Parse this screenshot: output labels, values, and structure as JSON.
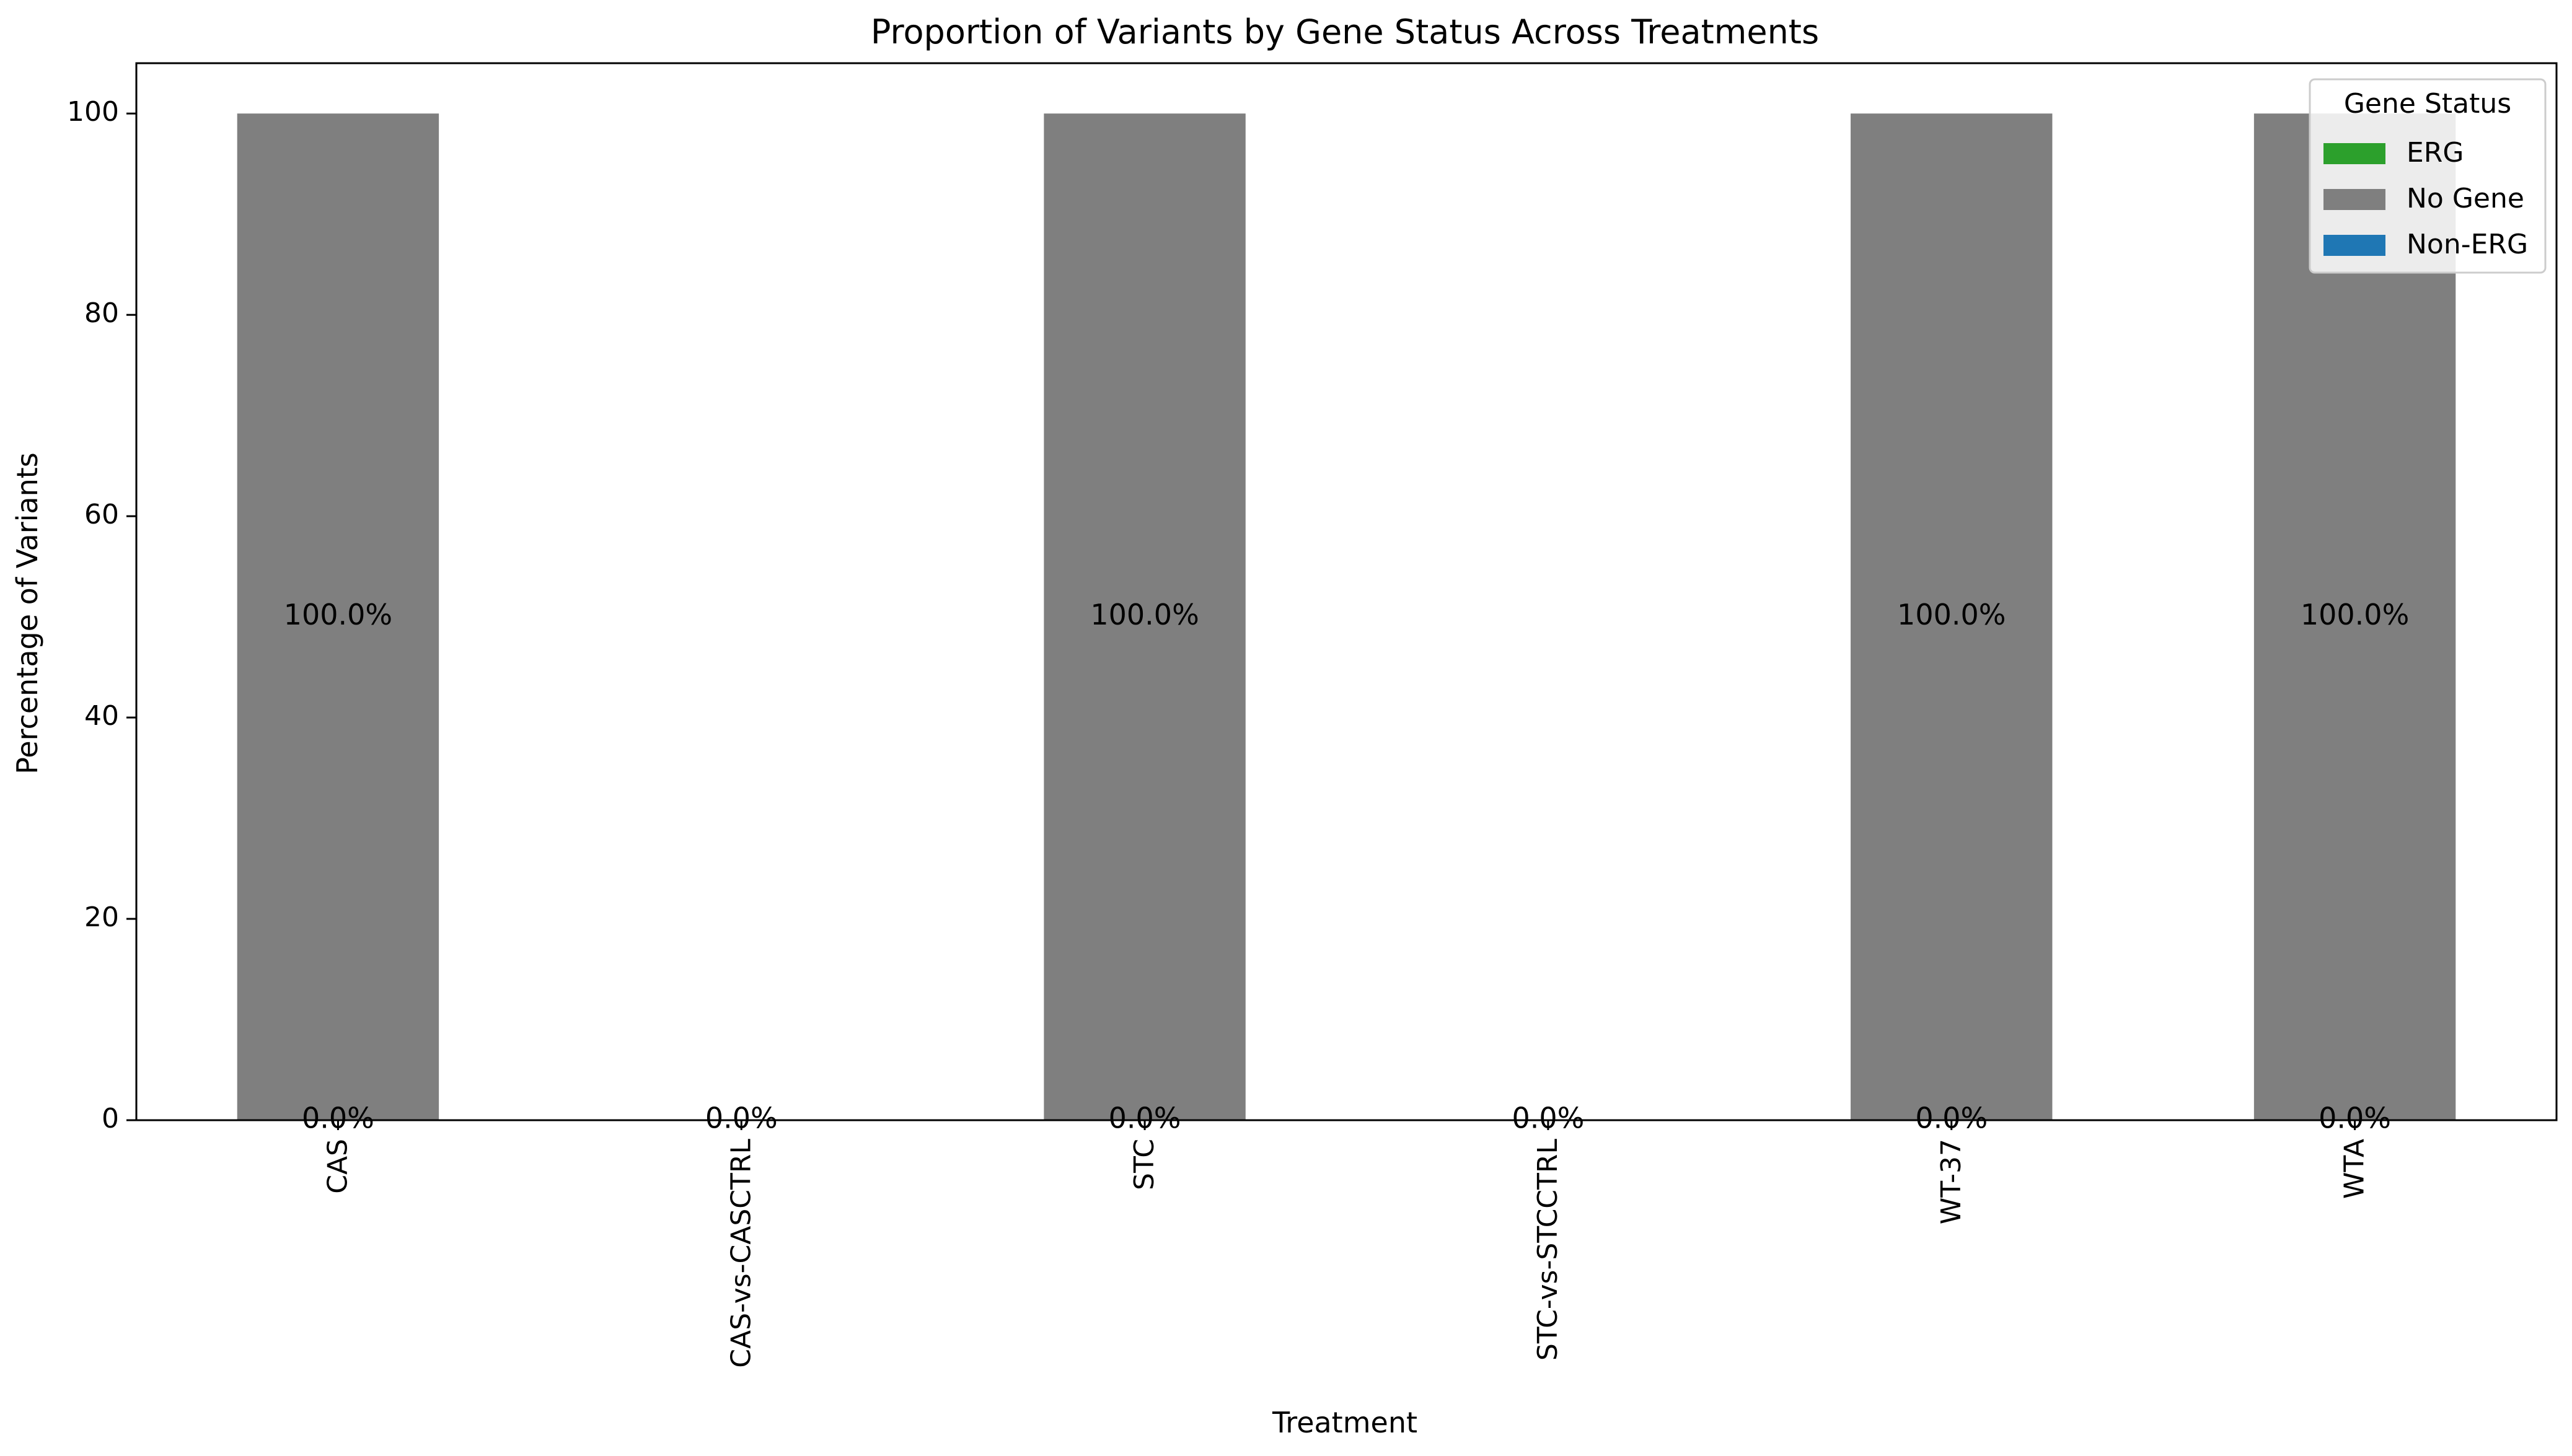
{
  "chart_data": {
    "type": "bar",
    "stacked": true,
    "title": "Proportion of Variants by Gene Status Across Treatments",
    "xlabel": "Treatment",
    "ylabel": "Percentage of Variants",
    "categories": [
      "CAS",
      "CAS-vs-CASCTRL",
      "STC",
      "STC-vs-STCCTRL",
      "WT-37",
      "WTA"
    ],
    "series": [
      {
        "name": "ERG",
        "color": "#2ca02c",
        "values": [
          0,
          0,
          0,
          0,
          0,
          0
        ]
      },
      {
        "name": "No Gene",
        "color": "#7f7f7f",
        "values": [
          100,
          0,
          100,
          0,
          100,
          100
        ]
      },
      {
        "name": "Non-ERG",
        "color": "#1f77b4",
        "values": [
          0,
          0,
          0,
          0,
          0,
          0
        ]
      }
    ],
    "data_labels": [
      {
        "category": "CAS",
        "labels": [
          "100.0%",
          "0.0%"
        ]
      },
      {
        "category": "CAS-vs-CASCTRL",
        "labels": [
          "0.0%"
        ]
      },
      {
        "category": "STC",
        "labels": [
          "100.0%",
          "0.0%"
        ]
      },
      {
        "category": "STC-vs-STCCTRL",
        "labels": [
          "0.0%"
        ]
      },
      {
        "category": "WT-37",
        "labels": [
          "100.0%",
          "0.0%"
        ]
      },
      {
        "category": "WTA",
        "labels": [
          "100.0%",
          "0.0%"
        ]
      }
    ],
    "ylim": [
      0,
      105
    ],
    "yticks": [
      0,
      20,
      40,
      60,
      80,
      100
    ],
    "grid": false,
    "legend": {
      "title": "Gene Status",
      "placement": "top-right"
    }
  }
}
